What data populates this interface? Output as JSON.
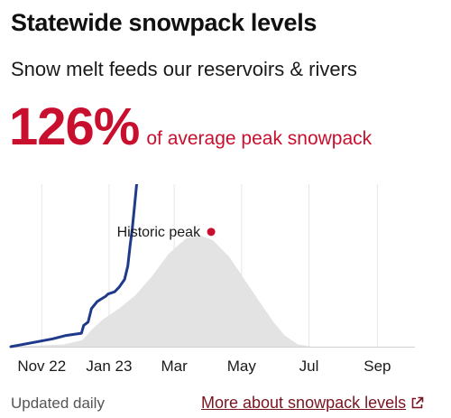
{
  "header": {
    "title": "Statewide snowpack levels",
    "subtitle": "Snow melt feeds our reservoirs & rivers"
  },
  "headline": {
    "value": "126%",
    "caption": "of average peak snowpack"
  },
  "colors": {
    "accent": "#c8102e",
    "current_line": "#1f3a8a",
    "historic_area": "#e3e3e3",
    "link": "#7a1520"
  },
  "footer": {
    "updated": "Updated daily",
    "link_label": "More about snowpack levels",
    "link_icon": "external-link-icon"
  },
  "chart_data": {
    "type": "area",
    "xlabel": "",
    "ylabel": "",
    "grid": true,
    "x_ticks": [
      "Nov 22",
      "Jan 23",
      "Mar",
      "May",
      "Jul",
      "Sep"
    ],
    "x_tick_days": [
      0,
      61,
      120,
      181,
      242,
      304
    ],
    "xlim": [
      -28,
      338
    ],
    "ylim": [
      0,
      1.45
    ],
    "annotations": [
      {
        "label": "Historic peak",
        "x_day": 142,
        "y": 1.0
      }
    ],
    "series": [
      {
        "type": "area",
        "x_day": [
          -28,
          20,
          37,
          45,
          55,
          70,
          85,
          100,
          115,
          130,
          142,
          155,
          170,
          185,
          200,
          210,
          220,
          232,
          245,
          338
        ],
        "values": [
          0,
          0.02,
          0.06,
          0.15,
          0.24,
          0.34,
          0.46,
          0.63,
          0.83,
          0.96,
          1.0,
          0.95,
          0.8,
          0.58,
          0.36,
          0.22,
          0.1,
          0.02,
          0,
          0
        ]
      },
      {
        "type": "line",
        "x_day": [
          -28,
          10,
          22,
          36,
          38,
          42,
          45,
          50,
          53,
          58,
          60,
          66,
          70,
          75,
          78,
          80,
          82,
          84,
          86
        ],
        "values": [
          0,
          0.07,
          0.1,
          0.12,
          0.19,
          0.22,
          0.34,
          0.4,
          0.42,
          0.45,
          0.47,
          0.49,
          0.53,
          0.6,
          0.72,
          0.9,
          1.05,
          1.25,
          1.45
        ]
      }
    ]
  }
}
